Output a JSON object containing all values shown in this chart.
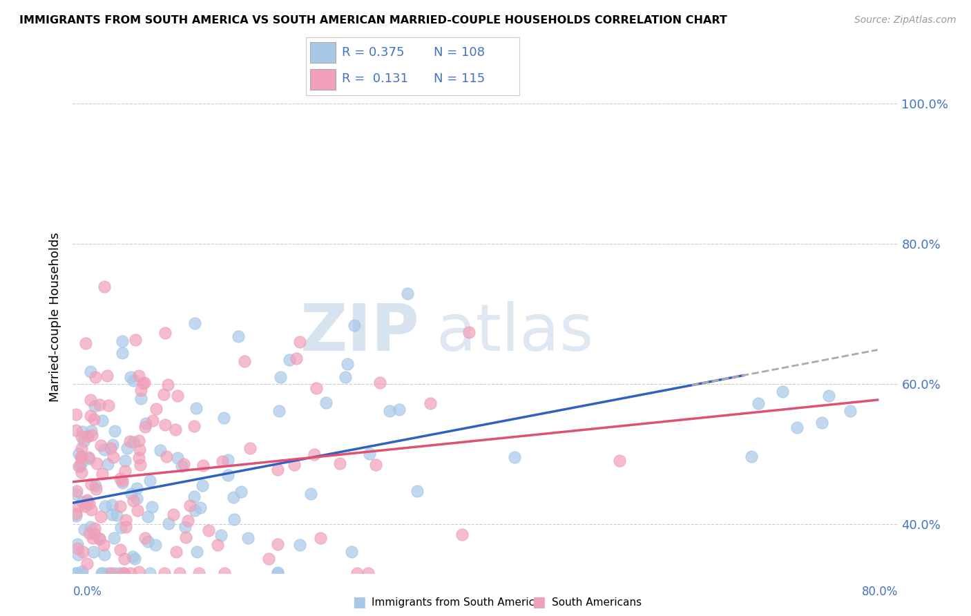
{
  "title": "IMMIGRANTS FROM SOUTH AMERICA VS SOUTH AMERICAN MARRIED-COUPLE HOUSEHOLDS CORRELATION CHART",
  "source": "Source: ZipAtlas.com",
  "ylabel": "Married-couple Households",
  "color_blue": "#A8C8E8",
  "color_pink": "#F0A0B8",
  "color_blue_line": "#3060C0",
  "color_pink_line": "#E05070",
  "color_blue_text": "#4472C4",
  "color_gray_dashed": "#AAAAAA",
  "background": "#FFFFFF",
  "xlim": [
    0.0,
    0.8
  ],
  "ylim": [
    0.33,
    1.06
  ],
  "grid_color": "#CCCCCC",
  "yticks": [
    0.4,
    0.6,
    0.8,
    1.0
  ],
  "ytick_labels": [
    "40.0%",
    "60.0%",
    "80.0%",
    "100.0%"
  ],
  "watermark_zip": "ZIP",
  "watermark_atlas": "atlas",
  "legend_items": [
    {
      "r": "R = 0.375",
      "n": "N = 108",
      "color": "#A8C8E8"
    },
    {
      "r": "R =  0.131",
      "n": "N = 115",
      "color": "#F0A0B8"
    }
  ]
}
